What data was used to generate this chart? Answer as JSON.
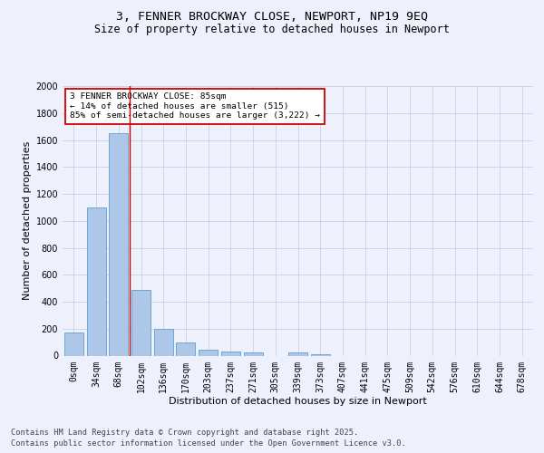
{
  "title_line1": "3, FENNER BROCKWAY CLOSE, NEWPORT, NP19 9EQ",
  "title_line2": "Size of property relative to detached houses in Newport",
  "xlabel": "Distribution of detached houses by size in Newport",
  "ylabel": "Number of detached properties",
  "categories": [
    "0sqm",
    "34sqm",
    "68sqm",
    "102sqm",
    "136sqm",
    "170sqm",
    "203sqm",
    "237sqm",
    "271sqm",
    "305sqm",
    "339sqm",
    "373sqm",
    "407sqm",
    "441sqm",
    "475sqm",
    "509sqm",
    "542sqm",
    "576sqm",
    "610sqm",
    "644sqm",
    "678sqm"
  ],
  "values": [
    170,
    1100,
    1650,
    490,
    200,
    100,
    43,
    28,
    22,
    0,
    22,
    10,
    0,
    0,
    0,
    0,
    0,
    0,
    0,
    0,
    0
  ],
  "bar_color": "#aec6e8",
  "bar_edge_color": "#5a9fd4",
  "vline_x": 2.5,
  "vline_color": "#cc0000",
  "annotation_text": "3 FENNER BROCKWAY CLOSE: 85sqm\n← 14% of detached houses are smaller (515)\n85% of semi-detached houses are larger (3,222) →",
  "annotation_box_color": "#cc0000",
  "ylim": [
    0,
    2000
  ],
  "yticks": [
    0,
    200,
    400,
    600,
    800,
    1000,
    1200,
    1400,
    1600,
    1800,
    2000
  ],
  "footer_line1": "Contains HM Land Registry data © Crown copyright and database right 2025.",
  "footer_line2": "Contains public sector information licensed under the Open Government Licence v3.0.",
  "bg_color": "#eef1fb",
  "plot_bg_color": "#eef1fb",
  "grid_color": "#c8cfe8",
  "title_fontsize": 9.5,
  "subtitle_fontsize": 8.5,
  "axis_label_fontsize": 8,
  "tick_fontsize": 7,
  "footer_fontsize": 6.2
}
